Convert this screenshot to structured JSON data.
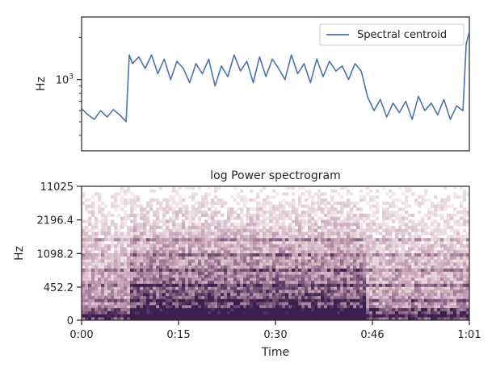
{
  "chart_data": [
    {
      "type": "line",
      "title": "",
      "xlabel": "",
      "ylabel": "Hz",
      "yscale": "log",
      "ylim": [
        310,
        2800
      ],
      "yticks": [
        {
          "value": 1000,
          "label": "10^3"
        }
      ],
      "xlim": [
        0,
        61
      ],
      "legend": {
        "position": "top-right"
      },
      "colors": {
        "line": "#4c72b0",
        "frame": "#262626"
      },
      "series": [
        {
          "name": "Spectral centroid",
          "x": [
            0,
            1,
            2,
            3,
            4,
            5,
            6,
            7,
            7.5,
            8,
            9,
            10,
            11,
            12,
            13,
            14,
            15,
            16,
            17,
            18,
            19,
            20,
            21,
            22,
            23,
            24,
            25,
            26,
            27,
            28,
            29,
            30,
            31,
            32,
            33,
            34,
            35,
            36,
            37,
            38,
            39,
            40,
            41,
            42,
            43,
            44,
            45,
            46,
            47,
            48,
            49,
            50,
            51,
            52,
            53,
            54,
            55,
            56,
            57,
            58,
            59,
            60,
            60.5,
            61
          ],
          "values": [
            620,
            560,
            520,
            600,
            540,
            610,
            560,
            500,
            1500,
            1300,
            1450,
            1200,
            1500,
            1100,
            1400,
            1000,
            1350,
            1200,
            950,
            1300,
            1100,
            1400,
            900,
            1250,
            1050,
            1500,
            1150,
            1350,
            950,
            1450,
            1050,
            1400,
            1200,
            1000,
            1500,
            1100,
            1300,
            950,
            1400,
            1050,
            1350,
            1150,
            1250,
            1000,
            1300,
            1150,
            750,
            600,
            720,
            540,
            680,
            580,
            700,
            520,
            760,
            600,
            680,
            560,
            720,
            520,
            650,
            600,
            1800,
            2200
          ]
        }
      ]
    },
    {
      "type": "heatmap",
      "title": "log Power spectrogram",
      "xlabel": "Time",
      "ylabel": "Hz",
      "xlim": [
        0,
        61
      ],
      "xticks": [
        {
          "value": 0,
          "label": "0:00"
        },
        {
          "value": 15.25,
          "label": "0:15"
        },
        {
          "value": 30.5,
          "label": "0:30"
        },
        {
          "value": 45.75,
          "label": "0:46"
        },
        {
          "value": 61,
          "label": "1:01"
        }
      ],
      "yticks": [
        {
          "value": 0,
          "label": "0"
        },
        {
          "value": 452.2,
          "label": "452.2"
        },
        {
          "value": 1098.2,
          "label": "1098.2"
        },
        {
          "value": 2196.4,
          "label": "2196.4"
        },
        {
          "value": 11025,
          "label": "11025"
        }
      ],
      "yscale": "log",
      "colors": {
        "low": "#f6e8e8",
        "mid": "#b07a96",
        "high": "#3b1f4f"
      }
    }
  ]
}
